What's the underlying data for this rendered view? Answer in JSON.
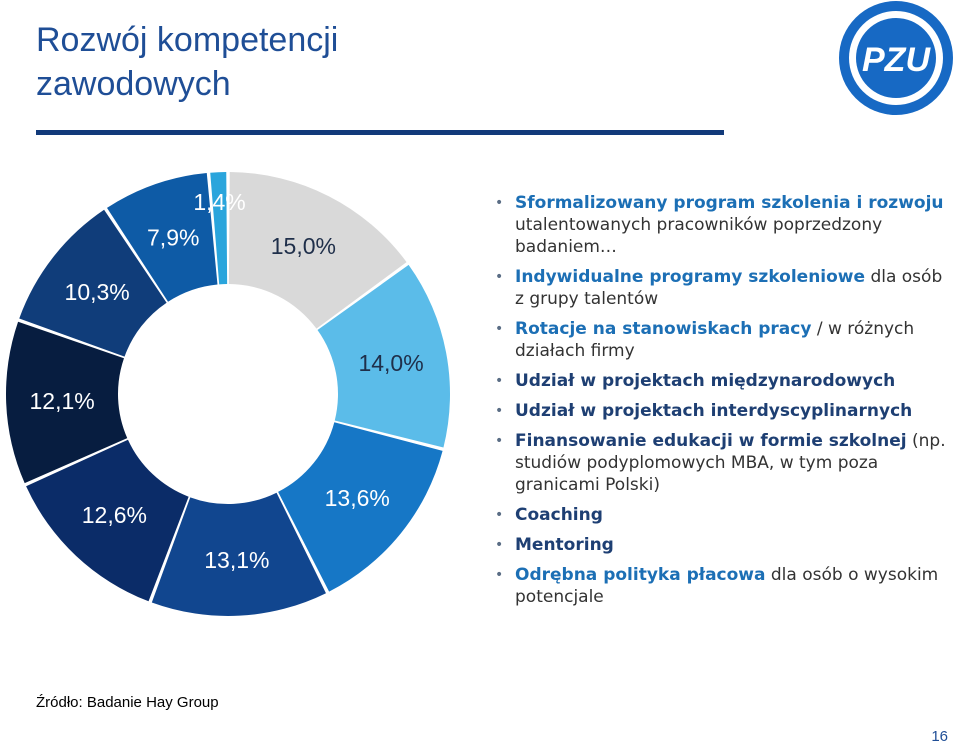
{
  "slide": {
    "title_line1": "Rozwój kompetencji",
    "title_line2": "zawodowych",
    "logo_text": "PZU",
    "source": "Źródło: Badanie Hay Group",
    "page_number": "16"
  },
  "legend": [
    {
      "highlight": "Sformalizowany program szkolenia i rozwoju",
      "rest": " utalentowanych pracowników poprzedzony badaniem…"
    },
    {
      "highlight": "Indywidualne programy szkoleniowe",
      "rest": " dla osób z grupy talentów"
    },
    {
      "highlight": "Rotacje na stanowiskach pracy",
      "rest": " / w różnych działach firmy"
    },
    {
      "highlight": "",
      "bold": "Udział w projektach międzynarodowych",
      "rest": ""
    },
    {
      "highlight": "",
      "bold": "Udział w projektach interdyscyplinarnych",
      "rest": ""
    },
    {
      "highlight": "",
      "bold": "Finansowanie edukacji w formie szkolnej",
      "rest": " (np. studiów podyplomowych MBA, w tym poza granicami Polski)"
    },
    {
      "highlight": "",
      "bold": "Coaching",
      "rest": ""
    },
    {
      "highlight": "",
      "bold": "Mentoring",
      "rest": ""
    },
    {
      "highlight": "Odrębna polityka płacowa",
      "rest": " dla osób o wysokim potencjale"
    }
  ],
  "chart_data": {
    "type": "donut",
    "title": "",
    "unit": "%",
    "start": "top",
    "direction": "clockwise",
    "slices": [
      {
        "label": "15,0%",
        "value": 15.0,
        "color": "#d9d9d9"
      },
      {
        "label": "14,0%",
        "value": 14.0,
        "color": "#5bbce9"
      },
      {
        "label": "13,6%",
        "value": 13.6,
        "color": "#1677c6"
      },
      {
        "label": "13,1%",
        "value": 13.1,
        "color": "#11468f"
      },
      {
        "label": "12,6%",
        "value": 12.6,
        "color": "#0b2c68"
      },
      {
        "label": "12,1%",
        "value": 12.1,
        "color": "#071d40"
      },
      {
        "label": "10,3%",
        "value": 10.3,
        "color": "#103d7a"
      },
      {
        "label": "7,9%",
        "value": 7.9,
        "color": "#0e5ba6"
      },
      {
        "label": "1,4%",
        "value": 1.4,
        "color": "#2aa5dc"
      }
    ]
  },
  "colors": {
    "title": "#1f4e96",
    "highlight_text": "#1c6fb5",
    "bold_text": "#1e3f73",
    "logo_blue": "#1769c4"
  }
}
